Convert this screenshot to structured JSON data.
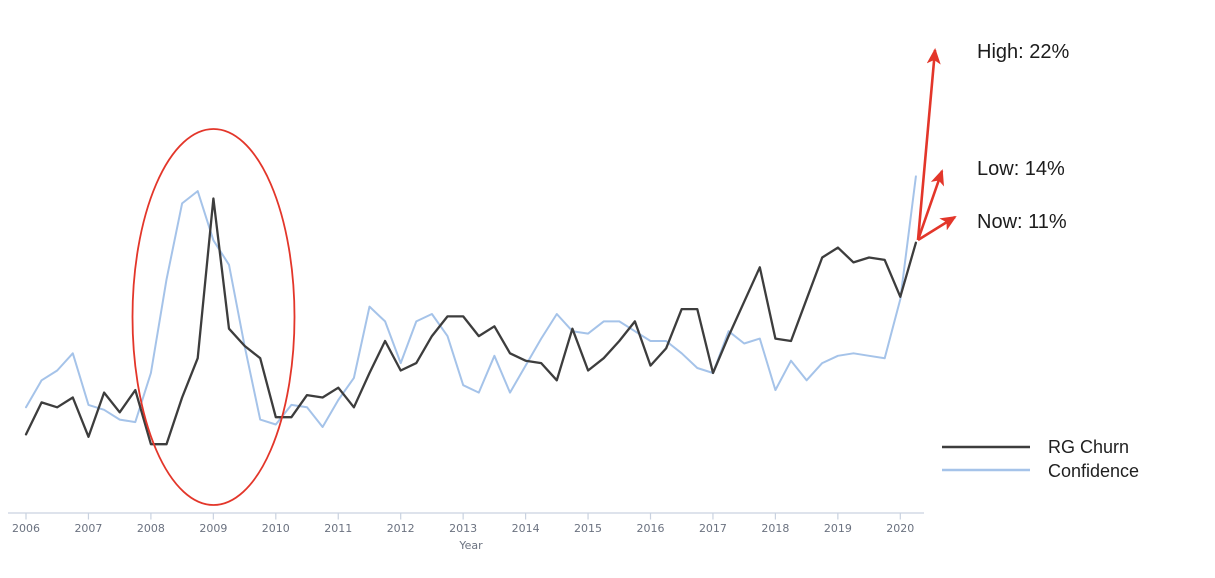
{
  "chart_data": {
    "type": "line",
    "title": "",
    "xlabel": "Year",
    "y_unit": "%",
    "y_axis_visible": false,
    "grid": false,
    "legend_position": "bottom-right",
    "x_ticks": [
      "2006",
      "2007",
      "2008",
      "2009",
      "2010",
      "2011",
      "2012",
      "2013",
      "2014",
      "2015",
      "2016",
      "2017",
      "2018",
      "2019",
      "2020"
    ],
    "x_range": [
      2006,
      2020.25
    ],
    "ylim": [
      0,
      23
    ],
    "x": [
      2006,
      2006.25,
      2006.5,
      2006.75,
      2007,
      2007.25,
      2007.5,
      2007.75,
      2008,
      2008.25,
      2008.5,
      2008.75,
      2009,
      2009.25,
      2009.5,
      2009.75,
      2010,
      2010.25,
      2010.5,
      2010.75,
      2011,
      2011.25,
      2011.5,
      2011.75,
      2012,
      2012.25,
      2012.5,
      2012.75,
      2013,
      2013.25,
      2013.5,
      2013.75,
      2014,
      2014.25,
      2014.5,
      2014.75,
      2015,
      2015.25,
      2015.5,
      2015.75,
      2016,
      2016.25,
      2016.5,
      2016.75,
      2017,
      2017.25,
      2017.5,
      2017.75,
      2018,
      2018.25,
      2018.5,
      2018.75,
      2019,
      2019.25,
      2019.5,
      2019.75,
      2020,
      2020.25
    ],
    "series": [
      {
        "name": "RG Churn",
        "color": "#3d3d3d",
        "values": [
          3.2,
          4.5,
          4.3,
          4.7,
          3.1,
          4.9,
          4.1,
          5.0,
          2.8,
          2.8,
          4.7,
          6.3,
          12.8,
          7.5,
          6.8,
          6.3,
          3.9,
          3.9,
          4.8,
          4.7,
          5.1,
          4.3,
          5.7,
          7.0,
          5.8,
          6.1,
          7.2,
          8.0,
          8.0,
          7.2,
          7.6,
          6.5,
          6.2,
          6.1,
          5.4,
          7.5,
          5.8,
          6.3,
          7.0,
          7.8,
          6.0,
          6.7,
          8.3,
          8.3,
          5.7,
          7.2,
          8.6,
          10.0,
          7.1,
          7.0,
          8.7,
          10.4,
          10.8,
          10.2,
          10.4,
          10.3,
          8.8,
          11.0
        ]
      },
      {
        "name": "Confidence",
        "color": "#a5c3e9",
        "values": [
          4.3,
          5.4,
          5.8,
          6.5,
          4.4,
          4.2,
          3.8,
          3.7,
          5.7,
          9.5,
          12.6,
          13.1,
          11.1,
          10.1,
          6.8,
          3.8,
          3.6,
          4.4,
          4.3,
          3.5,
          4.6,
          5.5,
          8.4,
          7.8,
          6.1,
          7.8,
          8.1,
          7.2,
          5.2,
          4.9,
          6.4,
          4.9,
          6.0,
          7.1,
          8.1,
          7.4,
          7.3,
          7.8,
          7.8,
          7.4,
          7.0,
          7.0,
          6.5,
          5.9,
          5.7,
          7.4,
          6.9,
          7.1,
          5.0,
          6.2,
          5.4,
          6.1,
          6.4,
          6.5,
          6.4,
          6.3,
          8.7,
          13.7
        ]
      }
    ],
    "annotations": [
      {
        "label": "High: 22%",
        "metric": "High",
        "value_pct": 22
      },
      {
        "label": "Low: 14%",
        "metric": "Low",
        "value_pct": 14
      },
      {
        "label": "Now: 11%",
        "metric": "Now",
        "value_pct": 11
      }
    ],
    "highlight": "red ellipse circling the 2008-2009 spike"
  },
  "colors": {
    "accent_red": "#e3362a",
    "axis": "#c9d2e0",
    "tick_text": "#6b7280",
    "annotation_text": "#1c1c1c",
    "legend_text": "#1f1f1f"
  }
}
